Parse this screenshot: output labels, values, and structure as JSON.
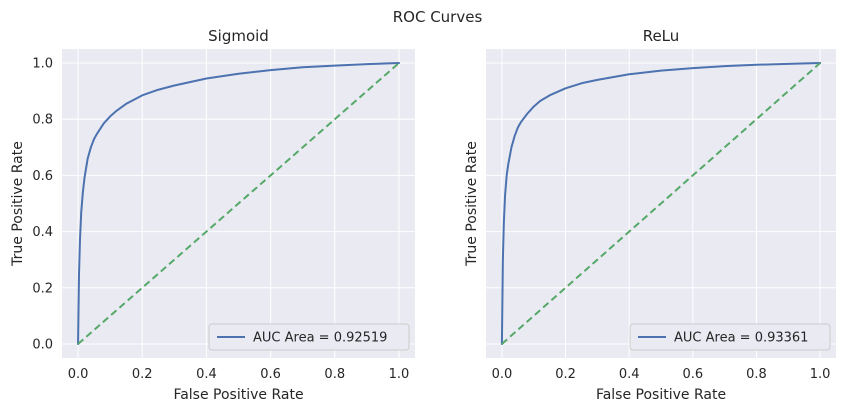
{
  "figure": {
    "suptitle": "ROC Curves"
  },
  "colors": {
    "plot_bg": "#eaeaf2",
    "grid": "#ffffff",
    "roc": "#4c72b0",
    "chance": "#55a868",
    "text": "#262626"
  },
  "chart_data": [
    {
      "type": "line",
      "title": "Sigmoid",
      "xlabel": "False Positive Rate",
      "ylabel": "True Positive Rate",
      "xlim": [
        -0.05,
        1.05
      ],
      "ylim": [
        -0.05,
        1.05
      ],
      "xticks": [
        0.0,
        0.2,
        0.4,
        0.6,
        0.8,
        1.0
      ],
      "yticks": [
        0.0,
        0.2,
        0.4,
        0.6,
        0.8,
        1.0
      ],
      "xtick_labels": [
        "0.0",
        "0.2",
        "0.4",
        "0.6",
        "0.8",
        "1.0"
      ],
      "ytick_labels": [
        "0.0",
        "0.2",
        "0.4",
        "0.6",
        "0.8",
        "1.0"
      ],
      "show_yticklabels": true,
      "grid": true,
      "legend": {
        "position": "lower-right",
        "entries": [
          "AUC Area = 0.92519"
        ]
      },
      "series": [
        {
          "name": "AUC Area = 0.92519",
          "style": "solid",
          "x": [
            0.0,
            0.003,
            0.006,
            0.01,
            0.015,
            0.02,
            0.03,
            0.04,
            0.05,
            0.06,
            0.08,
            0.1,
            0.12,
            0.15,
            0.2,
            0.25,
            0.3,
            0.4,
            0.5,
            0.6,
            0.7,
            0.8,
            0.9,
            1.0
          ],
          "y": [
            0.0,
            0.25,
            0.37,
            0.47,
            0.54,
            0.59,
            0.66,
            0.7,
            0.73,
            0.75,
            0.785,
            0.81,
            0.83,
            0.855,
            0.885,
            0.905,
            0.92,
            0.945,
            0.962,
            0.975,
            0.985,
            0.991,
            0.996,
            1.0
          ]
        },
        {
          "style": "dashed",
          "x": [
            0.0,
            1.0
          ],
          "y": [
            0.0,
            1.0
          ]
        }
      ]
    },
    {
      "type": "line",
      "title": "ReLu",
      "xlabel": "False Positive Rate",
      "ylabel": "True Positive Rate",
      "xlim": [
        -0.05,
        1.05
      ],
      "ylim": [
        -0.05,
        1.05
      ],
      "xticks": [
        0.0,
        0.2,
        0.4,
        0.6,
        0.8,
        1.0
      ],
      "yticks": [
        0.0,
        0.2,
        0.4,
        0.6,
        0.8,
        1.0
      ],
      "xtick_labels": [
        "0.0",
        "0.2",
        "0.4",
        "0.6",
        "0.8",
        "1.0"
      ],
      "ytick_labels": [],
      "show_yticklabels": false,
      "grid": true,
      "legend": {
        "position": "lower-right",
        "entries": [
          "AUC Area = 0.93361"
        ]
      },
      "series": [
        {
          "name": "AUC Area = 0.93361",
          "style": "solid",
          "x": [
            0.0,
            0.003,
            0.006,
            0.01,
            0.015,
            0.02,
            0.03,
            0.04,
            0.05,
            0.06,
            0.08,
            0.1,
            0.12,
            0.15,
            0.2,
            0.25,
            0.3,
            0.4,
            0.5,
            0.6,
            0.7,
            0.8,
            0.9,
            1.0
          ],
          "y": [
            0.0,
            0.3,
            0.43,
            0.53,
            0.6,
            0.64,
            0.7,
            0.74,
            0.77,
            0.79,
            0.82,
            0.845,
            0.865,
            0.885,
            0.91,
            0.928,
            0.94,
            0.96,
            0.973,
            0.982,
            0.989,
            0.994,
            0.997,
            1.0
          ]
        },
        {
          "style": "dashed",
          "x": [
            0.0,
            1.0
          ],
          "y": [
            0.0,
            1.0
          ]
        }
      ]
    }
  ]
}
